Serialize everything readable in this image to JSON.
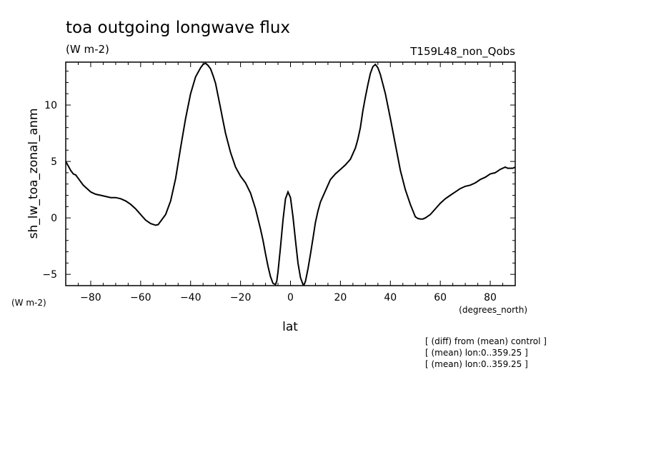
{
  "chart_data": {
    "type": "line",
    "title": "toa outgoing longwave flux",
    "units": "(W m-2)",
    "run_label": "T159L48_non_Qobs",
    "xlabel": "lat",
    "x_units": "(degrees_north)",
    "ylabel": "sh_lw_toa_zonal_anm",
    "y_units": "(W m-2)",
    "xlim": [
      -90,
      90
    ],
    "ylim": [
      -6,
      13.8
    ],
    "xticks": [
      -80,
      -60,
      -40,
      -20,
      0,
      20,
      40,
      60,
      80
    ],
    "yticks": [
      -5,
      0,
      5,
      10
    ],
    "grid": false,
    "series": [
      {
        "x": [
          -90,
          -89,
          -88,
          -87,
          -86,
          -85,
          -84,
          -83,
          -82,
          -80,
          -78,
          -76,
          -74,
          -72,
          -70,
          -68,
          -66,
          -64,
          -62,
          -60,
          -58,
          -56,
          -54,
          -53,
          -52,
          -50,
          -48,
          -46,
          -44,
          -42,
          -40,
          -38,
          -36,
          -35,
          -34,
          -33,
          -32,
          -31,
          -30,
          -29,
          -28,
          -27,
          -26,
          -24,
          -22,
          -20,
          -18,
          -16,
          -14,
          -12,
          -11,
          -10,
          -9,
          -8,
          -7,
          -6,
          -5.5,
          -5,
          -4,
          -3,
          -2,
          -1,
          0,
          1,
          2,
          3,
          4,
          5,
          5.5,
          6,
          7,
          8,
          9,
          10,
          11,
          12,
          14,
          16,
          18,
          20,
          22,
          24,
          26,
          27,
          28,
          29,
          30,
          31,
          32,
          33,
          34,
          35,
          36,
          38,
          40,
          42,
          44,
          46,
          48,
          50,
          51,
          52,
          53,
          54,
          56,
          58,
          60,
          62,
          64,
          66,
          68,
          70,
          72,
          74,
          76,
          78,
          80,
          82,
          84,
          85,
          86,
          87,
          88,
          89,
          90
        ],
        "y": [
          5.0,
          4.6,
          4.2,
          3.9,
          3.8,
          3.5,
          3.2,
          2.9,
          2.7,
          2.3,
          2.1,
          2.0,
          1.9,
          1.8,
          1.8,
          1.7,
          1.5,
          1.2,
          0.8,
          0.3,
          -0.2,
          -0.5,
          -0.65,
          -0.6,
          -0.3,
          0.3,
          1.5,
          3.5,
          6.2,
          8.8,
          11.0,
          12.5,
          13.3,
          13.6,
          13.7,
          13.5,
          13.2,
          12.6,
          11.9,
          10.8,
          9.7,
          8.6,
          7.5,
          5.8,
          4.5,
          3.7,
          3.1,
          2.2,
          0.8,
          -1.0,
          -2.0,
          -3.2,
          -4.3,
          -5.2,
          -5.8,
          -5.9,
          -5.6,
          -4.8,
          -2.6,
          -0.2,
          1.7,
          2.3,
          1.8,
          0.1,
          -2.0,
          -4.0,
          -5.3,
          -5.9,
          -5.9,
          -5.6,
          -4.5,
          -3.2,
          -1.8,
          -0.4,
          0.6,
          1.4,
          2.4,
          3.4,
          3.9,
          4.3,
          4.7,
          5.2,
          6.2,
          7.0,
          8.0,
          9.5,
          10.7,
          11.8,
          12.8,
          13.4,
          13.6,
          13.3,
          12.7,
          11.0,
          8.8,
          6.5,
          4.2,
          2.5,
          1.2,
          0.1,
          -0.05,
          -0.1,
          -0.1,
          0.0,
          0.3,
          0.8,
          1.3,
          1.7,
          2.0,
          2.3,
          2.6,
          2.8,
          2.9,
          3.1,
          3.4,
          3.6,
          3.9,
          4.0,
          4.3,
          4.4,
          4.5,
          4.4,
          4.4,
          4.4,
          4.5
        ]
      }
    ]
  },
  "notes": [
    "[ (diff) from (mean) control ]",
    "[ (mean) lon:0..359.25 ]",
    "[ (mean) lon:0..359.25 ]"
  ]
}
